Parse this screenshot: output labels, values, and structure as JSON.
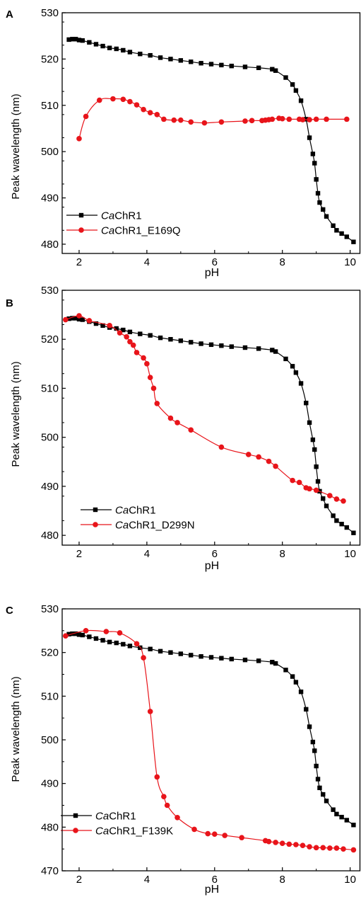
{
  "colors": {
    "series1": "#000000",
    "series2": "#e8141a",
    "axis": "#000000"
  },
  "chart_data": [
    {
      "type": "line",
      "panel_label": "A",
      "xlabel": "pH",
      "ylabel": "Peak wavelength (nm)",
      "xlim": [
        1.5,
        10.3
      ],
      "ylim": [
        478,
        530
      ],
      "xticks": [
        "2",
        "4",
        "6",
        "8",
        "10"
      ],
      "yticks": [
        "480",
        "490",
        "500",
        "510",
        "520",
        "530"
      ],
      "grid": false,
      "legend_position": "bottom-left",
      "series": [
        {
          "name": "CaChR1",
          "name_italic": "Ca",
          "name_rest": "ChR1",
          "marker": "square",
          "color": "#000000",
          "x": [
            1.7,
            1.8,
            1.9,
            2.0,
            2.1,
            2.3,
            2.5,
            2.7,
            2.9,
            3.1,
            3.3,
            3.5,
            3.8,
            4.1,
            4.4,
            4.7,
            5.0,
            5.3,
            5.6,
            5.9,
            6.2,
            6.5,
            6.9,
            7.3,
            7.7,
            7.8,
            8.1,
            8.3,
            8.4,
            8.55,
            8.7,
            8.8,
            8.9,
            8.95,
            9.0,
            9.05,
            9.1,
            9.2,
            9.3,
            9.5,
            9.6,
            9.75,
            9.9,
            10.1
          ],
          "y": [
            524.2,
            524.3,
            524.3,
            524.1,
            524.0,
            523.6,
            523.2,
            522.8,
            522.4,
            522.2,
            521.9,
            521.5,
            521.1,
            520.8,
            520.3,
            520.0,
            519.7,
            519.4,
            519.1,
            518.9,
            518.7,
            518.5,
            518.3,
            518.1,
            517.8,
            517.5,
            516.0,
            514.5,
            513.2,
            511.0,
            507.0,
            503.0,
            499.5,
            497.5,
            494.0,
            491.0,
            489.0,
            487.5,
            486.0,
            484.0,
            483.0,
            482.3,
            481.6,
            480.5
          ]
        },
        {
          "name": "CaChR1_E169Q",
          "name_italic": "Ca",
          "name_rest": "ChR1_E169Q",
          "marker": "circle",
          "color": "#e8141a",
          "x": [
            2.0,
            2.2,
            2.6,
            3.0,
            3.3,
            3.5,
            3.7,
            3.9,
            4.1,
            4.3,
            4.5,
            4.8,
            5.0,
            5.3,
            5.7,
            6.2,
            6.9,
            7.1,
            7.4,
            7.5,
            7.6,
            7.7,
            7.9,
            8.0,
            8.2,
            8.5,
            8.6,
            8.8,
            9.0,
            9.3,
            9.9
          ],
          "y": [
            502.8,
            507.6,
            511.1,
            511.4,
            511.3,
            510.8,
            510.1,
            509.1,
            508.4,
            508.0,
            507.0,
            506.8,
            506.8,
            506.4,
            506.2,
            506.4,
            506.6,
            506.7,
            506.7,
            506.8,
            506.9,
            507.0,
            507.2,
            507.1,
            507.0,
            507.0,
            506.9,
            506.9,
            507.0,
            507.0,
            507.0
          ]
        }
      ]
    },
    {
      "type": "line",
      "panel_label": "B",
      "xlabel": "pH",
      "ylabel": "Peak wavelength (nm)",
      "xlim": [
        1.5,
        10.3
      ],
      "ylim": [
        478,
        530
      ],
      "xticks": [
        "2",
        "4",
        "6",
        "8",
        "10"
      ],
      "yticks": [
        "480",
        "490",
        "500",
        "510",
        "520",
        "530"
      ],
      "grid": false,
      "legend_position": "bottom-left",
      "series": [
        {
          "name": "CaChR1",
          "name_italic": "Ca",
          "name_rest": "ChR1",
          "marker": "square",
          "color": "#000000",
          "x": [
            1.7,
            1.8,
            1.9,
            2.0,
            2.1,
            2.3,
            2.5,
            2.7,
            2.9,
            3.1,
            3.3,
            3.5,
            3.8,
            4.1,
            4.4,
            4.7,
            5.0,
            5.3,
            5.6,
            5.9,
            6.2,
            6.5,
            6.9,
            7.3,
            7.7,
            7.8,
            8.1,
            8.3,
            8.4,
            8.55,
            8.7,
            8.8,
            8.9,
            8.95,
            9.0,
            9.05,
            9.1,
            9.2,
            9.3,
            9.5,
            9.6,
            9.75,
            9.9,
            10.1
          ],
          "y": [
            524.2,
            524.3,
            524.3,
            524.1,
            524.0,
            523.6,
            523.2,
            522.8,
            522.4,
            522.2,
            521.9,
            521.5,
            521.1,
            520.8,
            520.3,
            520.0,
            519.7,
            519.4,
            519.1,
            518.9,
            518.7,
            518.5,
            518.3,
            518.1,
            517.8,
            517.5,
            516.0,
            514.5,
            513.2,
            511.0,
            507.0,
            503.0,
            499.5,
            497.5,
            494.0,
            491.0,
            489.0,
            487.5,
            486.0,
            484.0,
            483.0,
            482.3,
            481.6,
            480.5
          ]
        },
        {
          "name": "CaChR1_D299N",
          "name_italic": "Ca",
          "name_rest": "ChR1_D299N",
          "marker": "circle",
          "color": "#e8141a",
          "x": [
            1.6,
            2.0,
            2.3,
            2.9,
            3.2,
            3.4,
            3.5,
            3.6,
            3.7,
            3.9,
            4.0,
            4.1,
            4.2,
            4.3,
            4.7,
            4.9,
            5.3,
            6.2,
            7.0,
            7.3,
            7.6,
            7.8,
            8.3,
            8.5,
            8.7,
            8.8,
            9.0,
            9.4,
            9.6,
            9.8
          ],
          "y": [
            524.0,
            524.8,
            523.8,
            522.8,
            521.3,
            520.5,
            519.5,
            518.8,
            517.3,
            516.2,
            515.0,
            512.2,
            510.0,
            506.9,
            503.9,
            503.0,
            501.5,
            498.0,
            496.5,
            496.0,
            495.1,
            494.1,
            491.2,
            490.8,
            489.7,
            489.5,
            489.2,
            488.1,
            487.4,
            487.0
          ]
        }
      ]
    },
    {
      "type": "line",
      "panel_label": "C",
      "xlabel": "pH",
      "ylabel": "Peak wavelength (nm)",
      "xlim": [
        1.5,
        10.3
      ],
      "ylim": [
        470,
        530
      ],
      "xticks": [
        "2",
        "4",
        "6",
        "8",
        "10"
      ],
      "yticks": [
        "470",
        "480",
        "490",
        "500",
        "510",
        "520",
        "530"
      ],
      "grid": false,
      "legend_position": "bottom-left",
      "series": [
        {
          "name": "CaChR1",
          "name_italic": "Ca",
          "name_rest": "ChR1",
          "marker": "square",
          "color": "#000000",
          "x": [
            1.7,
            1.8,
            1.9,
            2.0,
            2.1,
            2.3,
            2.5,
            2.7,
            2.9,
            3.1,
            3.3,
            3.5,
            3.8,
            4.1,
            4.4,
            4.7,
            5.0,
            5.3,
            5.6,
            5.9,
            6.2,
            6.5,
            6.9,
            7.3,
            7.7,
            7.8,
            8.1,
            8.3,
            8.4,
            8.55,
            8.7,
            8.8,
            8.9,
            8.95,
            9.0,
            9.05,
            9.1,
            9.2,
            9.3,
            9.5,
            9.6,
            9.75,
            9.9,
            10.1
          ],
          "y": [
            524.2,
            524.3,
            524.3,
            524.1,
            524.0,
            523.6,
            523.2,
            522.8,
            522.4,
            522.2,
            521.9,
            521.5,
            521.1,
            520.8,
            520.3,
            520.0,
            519.7,
            519.4,
            519.1,
            518.9,
            518.7,
            518.5,
            518.3,
            518.1,
            517.8,
            517.5,
            516.0,
            514.5,
            513.2,
            511.0,
            507.0,
            503.0,
            499.5,
            497.5,
            494.0,
            491.0,
            489.0,
            487.5,
            486.0,
            484.0,
            483.0,
            482.3,
            481.6,
            480.5
          ]
        },
        {
          "name": "CaChR1_F139K",
          "name_italic": "Ca",
          "name_rest": "ChR1_F139K",
          "marker": "circle",
          "color": "#e8141a",
          "x": [
            1.6,
            2.2,
            2.8,
            3.2,
            3.7,
            3.9,
            4.1,
            4.3,
            4.5,
            4.6,
            4.9,
            5.4,
            5.8,
            6.0,
            6.3,
            6.8,
            7.5,
            7.6,
            7.8,
            8.0,
            8.2,
            8.4,
            8.6,
            8.8,
            9.0,
            9.2,
            9.4,
            9.6,
            9.8,
            10.1
          ],
          "y": [
            523.8,
            525.0,
            524.8,
            524.5,
            522.0,
            518.8,
            506.5,
            491.5,
            487.0,
            485.0,
            482.2,
            479.5,
            478.5,
            478.4,
            478.1,
            477.6,
            476.9,
            476.7,
            476.5,
            476.3,
            476.1,
            476.0,
            475.8,
            475.5,
            475.3,
            475.3,
            475.2,
            475.2,
            475.0,
            474.8
          ]
        }
      ]
    }
  ]
}
